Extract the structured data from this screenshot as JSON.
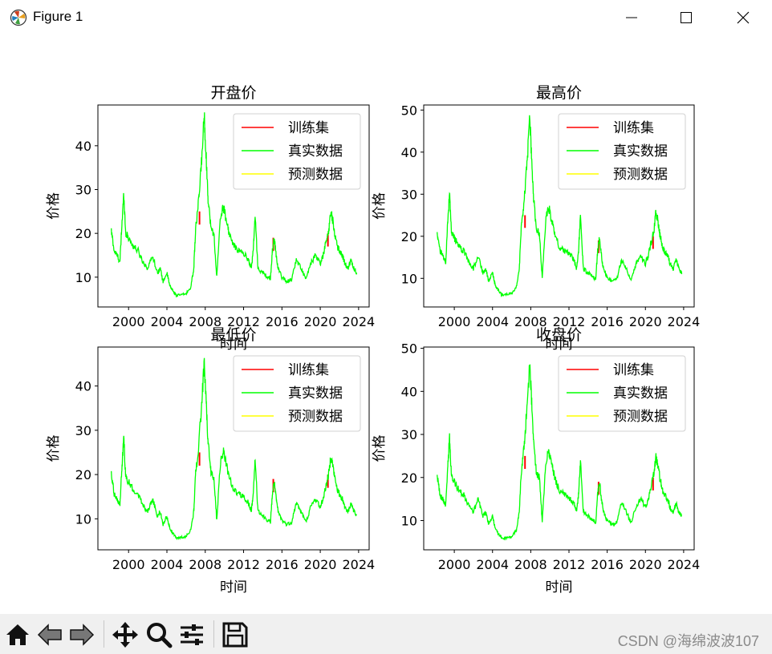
{
  "window": {
    "title": "Figure 1",
    "icon": "matplotlib-icon",
    "controls": [
      "minimize-icon",
      "maximize-icon",
      "close-icon"
    ]
  },
  "toolbar": {
    "buttons": [
      "home-icon",
      "back-icon",
      "forward-icon",
      "pan-icon",
      "zoom-icon",
      "configure-subplots-icon",
      "save-icon"
    ],
    "watermark": "CSDN @海绵波波107"
  },
  "colors": {
    "train": "#ff0000",
    "real": "#00ff00",
    "pred": "#ffff00"
  },
  "legend": [
    "训练集",
    "真实数据",
    "预测数据"
  ],
  "chart_data": [
    {
      "type": "line",
      "title": "开盘价",
      "xlabel": "时间",
      "ylabel": "价格",
      "xlim": [
        1996.8,
        2025.1
      ],
      "ylim": [
        3.2,
        49.3
      ],
      "yticks": [
        10,
        20,
        30,
        40
      ],
      "xticks": [
        2000,
        2004,
        2008,
        2012,
        2016,
        2020,
        2024
      ],
      "legend_loc": "upper right",
      "grid": false,
      "series": [
        {
          "name": "训练集",
          "color": "#ff0000"
        },
        {
          "name": "真实数据",
          "color": "#00ff00"
        },
        {
          "name": "预测数据",
          "color": "#ffff00"
        }
      ]
    },
    {
      "type": "line",
      "title": "最高价",
      "xlabel": "时间",
      "ylabel": "价格",
      "xlim": [
        1996.8,
        2025.1
      ],
      "ylim": [
        3.2,
        51.2
      ],
      "yticks": [
        10,
        20,
        30,
        40,
        50
      ],
      "xticks": [
        2000,
        2004,
        2008,
        2012,
        2016,
        2020,
        2024
      ],
      "legend_loc": "upper right",
      "grid": false,
      "series": [
        {
          "name": "训练集",
          "color": "#ff0000"
        },
        {
          "name": "真实数据",
          "color": "#00ff00"
        },
        {
          "name": "预测数据",
          "color": "#ffff00"
        }
      ]
    },
    {
      "type": "line",
      "title": "最低价",
      "xlabel": "时间",
      "ylabel": "价格",
      "xlim": [
        1996.8,
        2025.1
      ],
      "ylim": [
        3.0,
        48.8
      ],
      "yticks": [
        10,
        20,
        30,
        40
      ],
      "xticks": [
        2000,
        2004,
        2008,
        2012,
        2016,
        2020,
        2024
      ],
      "legend_loc": "upper right",
      "grid": false,
      "series": [
        {
          "name": "训练集",
          "color": "#ff0000"
        },
        {
          "name": "真实数据",
          "color": "#00ff00"
        },
        {
          "name": "预测数据",
          "color": "#ffff00"
        }
      ]
    },
    {
      "type": "line",
      "title": "收盘价",
      "xlabel": "时间",
      "ylabel": "价格",
      "xlim": [
        1996.8,
        2025.1
      ],
      "ylim": [
        3.2,
        50.3
      ],
      "yticks": [
        10,
        20,
        30,
        40,
        50
      ],
      "xticks": [
        2000,
        2004,
        2008,
        2012,
        2016,
        2020,
        2024
      ],
      "legend_loc": "upper right",
      "grid": false,
      "series": [
        {
          "name": "训练集",
          "color": "#ff0000"
        },
        {
          "name": "真实数据",
          "color": "#00ff00"
        },
        {
          "name": "预测数据",
          "color": "#ffff00"
        }
      ]
    }
  ],
  "price_path": {
    "x": [
      1998.2,
      1998.5,
      1998.8,
      1999.1,
      1999.3,
      1999.5,
      1999.7,
      2000.0,
      2000.5,
      2001.0,
      2001.5,
      2002.0,
      2002.5,
      2003.0,
      2003.3,
      2003.6,
      2004.0,
      2004.3,
      2004.6,
      2005.0,
      2005.5,
      2006.0,
      2006.5,
      2006.8,
      2007.0,
      2007.3,
      2007.6,
      2007.9,
      2008.1,
      2008.3,
      2008.6,
      2008.9,
      2009.2,
      2009.6,
      2009.9,
      2010.2,
      2010.5,
      2011.0,
      2011.5,
      2012.0,
      2012.5,
      2012.8,
      2013.0,
      2013.2,
      2013.5,
      2014.0,
      2014.5,
      2014.8,
      2015.0,
      2015.2,
      2015.4,
      2015.6,
      2016.0,
      2016.5,
      2017.0,
      2017.5,
      2018.0,
      2018.5,
      2019.0,
      2019.5,
      2020.0,
      2020.3,
      2020.6,
      2020.9,
      2021.1,
      2021.3,
      2021.5,
      2021.8,
      2022.0,
      2022.3,
      2022.6,
      2022.9,
      2023.2,
      2023.5,
      2023.8
    ],
    "y": [
      20.5,
      16,
      15,
      13.5,
      22,
      29,
      20,
      19,
      17,
      16,
      13.5,
      12,
      15,
      11,
      12,
      9,
      11,
      8,
      7,
      5.8,
      6,
      6.2,
      7.8,
      12,
      21,
      27,
      36,
      47,
      37,
      28,
      21,
      20,
      10,
      24,
      26,
      23,
      20,
      17,
      16,
      15.5,
      14,
      12,
      16,
      24,
      12,
      11,
      10,
      9.5,
      16,
      19,
      15,
      12,
      10,
      9,
      9.5,
      14,
      12,
      9.5,
      13,
      15,
      13,
      15,
      18,
      21,
      25,
      23,
      20,
      17,
      16,
      15,
      13,
      12,
      14,
      12,
      11
    ]
  },
  "train_spikes": {
    "x": [
      2007.4,
      2015.1,
      2020.8
    ],
    "y": [
      25,
      19,
      20
    ]
  }
}
